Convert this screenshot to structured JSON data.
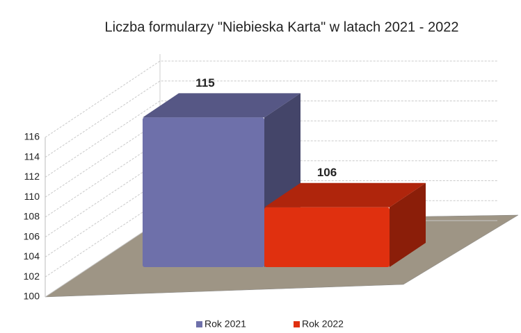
{
  "chart_data": {
    "type": "bar",
    "title": "Liczba formularzy \"Niebieska Karta\" w latach 2021 - 2022",
    "categories": [
      null
    ],
    "series": [
      {
        "name": "Rok 2021",
        "color": "#6e70aa",
        "values": [
          115
        ]
      },
      {
        "name": "Rok 2022",
        "color": "#e0300f",
        "values": [
          106
        ]
      }
    ],
    "ylim": [
      100,
      116
    ],
    "yticks": [
      100,
      102,
      104,
      106,
      108,
      110,
      112,
      114,
      116
    ],
    "grid": true,
    "legend": "bottom"
  }
}
